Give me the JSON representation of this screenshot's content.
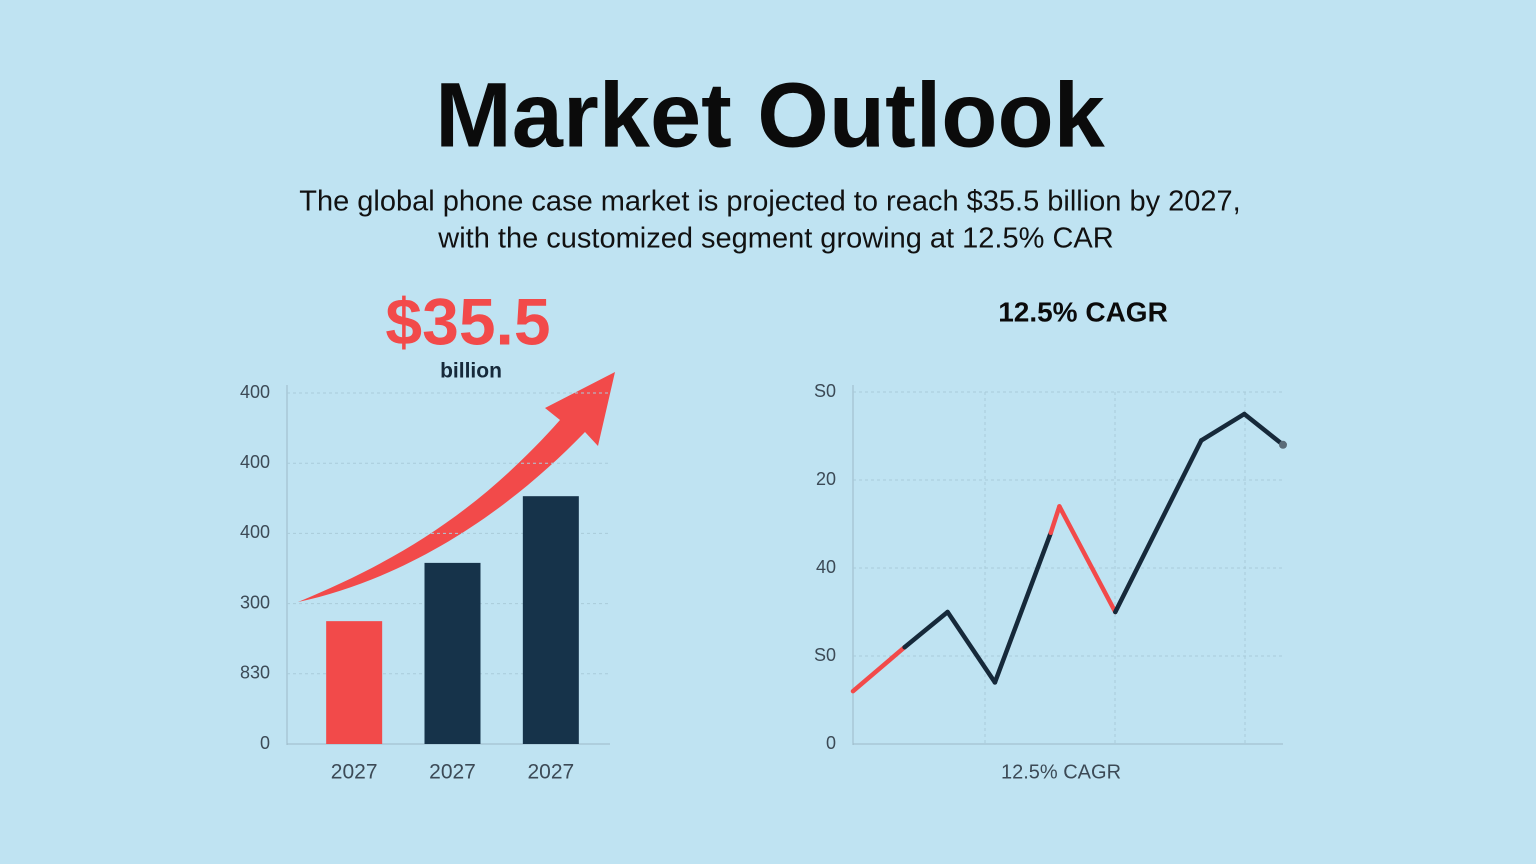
{
  "header": {
    "title": "Market Outlook",
    "subtitle": [
      "The global phone case market is projected to reach $35.5 billion by 2027,",
      "with the customized segment growing at 12.5% CAR"
    ]
  },
  "chart_data": [
    {
      "type": "bar",
      "annotation": "$35.5",
      "annotation_unit": "billion",
      "categories": [
        "2027",
        "2027",
        "2027"
      ],
      "values": [
        1.75,
        2.58,
        3.53
      ],
      "colors": [
        "#f24a4a",
        "#16334a",
        "#16334a"
      ],
      "ylim": [
        0,
        5
      ],
      "yticks": [
        {
          "value": 0,
          "label": "0"
        },
        {
          "value": 1,
          "label": "830"
        },
        {
          "value": 2,
          "label": "300"
        },
        {
          "value": 3,
          "label": "400"
        },
        {
          "value": 4,
          "label": "400"
        },
        {
          "value": 5,
          "label": "400"
        }
      ],
      "grid": true
    },
    {
      "type": "line",
      "title": "12.5% CAGR",
      "xlabel": "12.5% CAGR",
      "x": [
        0,
        1.2,
        2.2,
        3.3,
        4.6,
        4.8,
        6.1,
        8.1,
        9.1,
        10
      ],
      "values": [
        0.6,
        1.1,
        1.5,
        0.7,
        2.4,
        2.7,
        1.5,
        3.45,
        3.75,
        3.4
      ],
      "color": "#16293a",
      "segment_colors": [
        "#f24a4a",
        "#16293a",
        "#16293a",
        "#16293a",
        "#f24a4a",
        "#f24a4a",
        "#16293a",
        "#16293a",
        "#16293a"
      ],
      "xlim": [
        0,
        10
      ],
      "ylim": [
        0,
        4
      ],
      "yticks": [
        {
          "value": 0,
          "label": "0"
        },
        {
          "value": 1,
          "label": "S0"
        },
        {
          "value": 2,
          "label": "40"
        },
        {
          "value": 3,
          "label": "20"
        },
        {
          "value": 4,
          "label": "S0"
        }
      ],
      "grid": true
    }
  ]
}
